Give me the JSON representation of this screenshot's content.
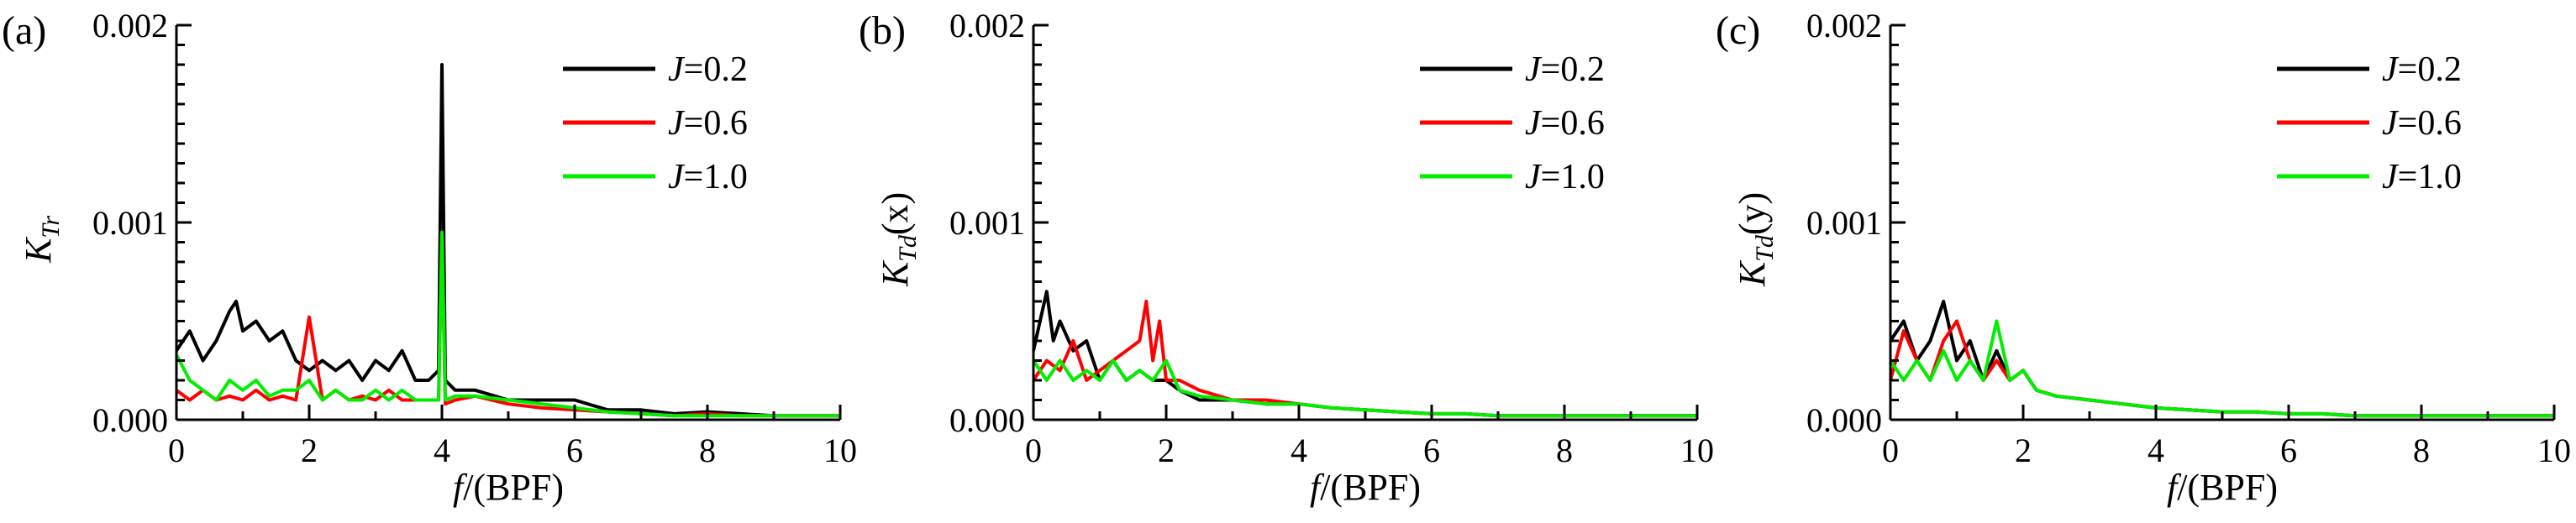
{
  "chart_data": [
    {
      "type": "line",
      "panel_label": "(a)",
      "ylabel": {
        "main": "K",
        "sub": "Tr",
        "suffix": ""
      },
      "xlabel": {
        "italic": "f",
        "rest": "/(BPF)"
      },
      "xlim": [
        0,
        10
      ],
      "ylim": [
        0,
        0.002
      ],
      "xticks": [
        "0",
        "2",
        "4",
        "6",
        "8",
        "10"
      ],
      "yticks": [
        "0.000",
        "0.001",
        "0.002"
      ],
      "legend_position": "top-right",
      "series": [
        {
          "name": "J=0.2",
          "prefix": "J",
          "value_text": "=0.2",
          "color": "#000000",
          "x": [
            0,
            0.2,
            0.4,
            0.6,
            0.8,
            0.9,
            1.0,
            1.2,
            1.4,
            1.6,
            1.8,
            2.0,
            2.2,
            2.4,
            2.6,
            2.8,
            3.0,
            3.2,
            3.4,
            3.6,
            3.8,
            3.95,
            4.0,
            4.05,
            4.2,
            4.5,
            5.0,
            5.5,
            6.0,
            6.5,
            7.0,
            7.5,
            8.0,
            8.5,
            9.0,
            9.5,
            10.0
          ],
          "y": [
            0.00035,
            0.00045,
            0.0003,
            0.0004,
            0.00055,
            0.0006,
            0.00045,
            0.0005,
            0.0004,
            0.00045,
            0.0003,
            0.00025,
            0.0003,
            0.00025,
            0.0003,
            0.0002,
            0.0003,
            0.00025,
            0.00035,
            0.0002,
            0.0002,
            0.00025,
            0.0018,
            0.0002,
            0.00015,
            0.00015,
            0.0001,
            0.0001,
            0.0001,
            5e-05,
            5e-05,
            3e-05,
            4e-05,
            3e-05,
            2e-05,
            2e-05,
            2e-05
          ]
        },
        {
          "name": "J=0.6",
          "prefix": "J",
          "value_text": "=0.6",
          "color": "#ff0000",
          "x": [
            0,
            0.2,
            0.4,
            0.6,
            0.8,
            1.0,
            1.2,
            1.4,
            1.6,
            1.8,
            2.0,
            2.2,
            2.4,
            2.6,
            2.8,
            3.0,
            3.2,
            3.4,
            3.6,
            3.8,
            3.95,
            4.0,
            4.05,
            4.2,
            4.5,
            5.0,
            5.5,
            6.0,
            6.5,
            7.0,
            7.5,
            8.0,
            8.5,
            9.0,
            9.5,
            10.0
          ],
          "y": [
            0.00015,
            0.0001,
            0.00015,
            0.0001,
            0.00012,
            0.0001,
            0.00015,
            0.0001,
            0.00012,
            0.0001,
            0.00052,
            0.0001,
            0.00015,
            0.0001,
            0.00012,
            0.0001,
            0.00015,
            0.0001,
            0.0001,
            0.0001,
            0.0001,
            0.00095,
            8e-05,
            0.0001,
            0.00012,
            8e-05,
            6e-05,
            5e-05,
            4e-05,
            3e-05,
            2e-05,
            3e-05,
            2e-05,
            2e-05,
            2e-05,
            2e-05
          ]
        },
        {
          "name": "J=1.0",
          "prefix": "J",
          "value_text": "=1.0",
          "color": "#00ee00",
          "x": [
            0,
            0.2,
            0.4,
            0.6,
            0.8,
            1.0,
            1.2,
            1.4,
            1.6,
            1.8,
            2.0,
            2.2,
            2.4,
            2.6,
            2.8,
            3.0,
            3.2,
            3.4,
            3.6,
            3.8,
            3.95,
            4.0,
            4.05,
            4.2,
            4.5,
            5.0,
            5.5,
            6.0,
            6.5,
            7.0,
            7.5,
            8.0,
            8.5,
            9.0,
            9.5,
            10.0
          ],
          "y": [
            0.00033,
            0.0002,
            0.00015,
            0.0001,
            0.0002,
            0.00015,
            0.0002,
            0.00012,
            0.00015,
            0.00015,
            0.0002,
            0.0001,
            0.00015,
            0.0001,
            0.0001,
            0.00015,
            0.0001,
            0.00015,
            0.0001,
            0.0001,
            0.0001,
            0.00095,
            0.0001,
            0.00012,
            0.00012,
            0.0001,
            8e-05,
            6e-05,
            4e-05,
            3e-05,
            2e-05,
            2e-05,
            2e-05,
            2e-05,
            2e-05,
            2e-05
          ]
        }
      ]
    },
    {
      "type": "line",
      "panel_label": "(b)",
      "ylabel": {
        "main": "K",
        "sub": "Td",
        "suffix": "(x)"
      },
      "xlabel": {
        "italic": "f",
        "rest": "/(BPF)"
      },
      "xlim": [
        0,
        10
      ],
      "ylim": [
        0,
        0.002
      ],
      "xticks": [
        "0",
        "2",
        "4",
        "6",
        "8",
        "10"
      ],
      "yticks": [
        "0.000",
        "0.001",
        "0.002"
      ],
      "legend_position": "top-right",
      "series": [
        {
          "name": "J=0.2",
          "prefix": "J",
          "value_text": "=0.2",
          "color": "#000000",
          "x": [
            0,
            0.1,
            0.2,
            0.3,
            0.4,
            0.6,
            0.8,
            1.0,
            1.2,
            1.4,
            1.6,
            1.8,
            2.0,
            2.2,
            2.5,
            3.0,
            3.5,
            4.0,
            4.5,
            5.0,
            5.5,
            6.0,
            6.5,
            7.0,
            7.5,
            8.0,
            8.5,
            9.0,
            9.5,
            10.0
          ],
          "y": [
            0.00035,
            0.0005,
            0.00065,
            0.0004,
            0.0005,
            0.00035,
            0.0004,
            0.0002,
            0.0003,
            0.0002,
            0.00025,
            0.0002,
            0.0002,
            0.00015,
            0.0001,
            0.0001,
            8e-05,
            8e-05,
            6e-05,
            5e-05,
            4e-05,
            3e-05,
            3e-05,
            2e-05,
            2e-05,
            2e-05,
            2e-05,
            2e-05,
            2e-05,
            2e-05
          ]
        },
        {
          "name": "J=0.6",
          "prefix": "J",
          "value_text": "=0.6",
          "color": "#ff0000",
          "x": [
            0,
            0.2,
            0.4,
            0.6,
            0.8,
            1.0,
            1.2,
            1.4,
            1.6,
            1.7,
            1.8,
            1.9,
            2.0,
            2.2,
            2.5,
            3.0,
            3.5,
            4.0,
            4.5,
            5.0,
            5.5,
            6.0,
            6.5,
            7.0,
            7.5,
            8.0,
            8.5,
            9.0,
            9.5,
            10.0
          ],
          "y": [
            0.0002,
            0.0003,
            0.00025,
            0.0004,
            0.0002,
            0.00025,
            0.0003,
            0.00035,
            0.0004,
            0.0006,
            0.0003,
            0.0005,
            0.0002,
            0.0002,
            0.00015,
            0.0001,
            0.0001,
            8e-05,
            6e-05,
            5e-05,
            4e-05,
            3e-05,
            3e-05,
            2e-05,
            2e-05,
            2e-05,
            2e-05,
            2e-05,
            2e-05,
            2e-05
          ]
        },
        {
          "name": "J=1.0",
          "prefix": "J",
          "value_text": "=1.0",
          "color": "#00ee00",
          "x": [
            0,
            0.2,
            0.4,
            0.6,
            0.8,
            1.0,
            1.2,
            1.4,
            1.6,
            1.8,
            2.0,
            2.2,
            2.5,
            3.0,
            3.5,
            4.0,
            4.5,
            5.0,
            5.5,
            6.0,
            6.5,
            7.0,
            7.5,
            8.0,
            8.5,
            9.0,
            9.5,
            10.0
          ],
          "y": [
            0.0003,
            0.0002,
            0.0003,
            0.0002,
            0.00025,
            0.0002,
            0.0003,
            0.0002,
            0.00025,
            0.0002,
            0.0003,
            0.00015,
            0.00012,
            0.0001,
            8e-05,
            8e-05,
            6e-05,
            5e-05,
            4e-05,
            3e-05,
            3e-05,
            2e-05,
            2e-05,
            2e-05,
            2e-05,
            2e-05,
            2e-05,
            2e-05
          ]
        }
      ]
    },
    {
      "type": "line",
      "panel_label": "(c)",
      "ylabel": {
        "main": "K",
        "sub": "Td",
        "suffix": "(y)"
      },
      "xlabel": {
        "italic": "f",
        "rest": "/(BPF)"
      },
      "xlim": [
        0,
        10
      ],
      "ylim": [
        0,
        0.002
      ],
      "xticks": [
        "0",
        "2",
        "4",
        "6",
        "8",
        "10"
      ],
      "yticks": [
        "0.000",
        "0.001",
        "0.002"
      ],
      "legend_position": "top-right",
      "series": [
        {
          "name": "J=0.2",
          "prefix": "J",
          "value_text": "=0.2",
          "color": "#000000",
          "x": [
            0,
            0.2,
            0.4,
            0.6,
            0.8,
            1.0,
            1.2,
            1.4,
            1.6,
            1.8,
            2.0,
            2.2,
            2.5,
            3.0,
            3.5,
            4.0,
            4.5,
            5.0,
            5.5,
            6.0,
            6.5,
            7.0,
            7.5,
            8.0,
            8.5,
            9.0,
            9.5,
            10.0
          ],
          "y": [
            0.0004,
            0.0005,
            0.0003,
            0.0004,
            0.0006,
            0.0003,
            0.0004,
            0.0002,
            0.00035,
            0.0002,
            0.00025,
            0.00015,
            0.00012,
            0.0001,
            8e-05,
            6e-05,
            5e-05,
            4e-05,
            4e-05,
            3e-05,
            3e-05,
            2e-05,
            2e-05,
            2e-05,
            2e-05,
            2e-05,
            2e-05,
            2e-05
          ]
        },
        {
          "name": "J=0.6",
          "prefix": "J",
          "value_text": "=0.6",
          "color": "#ff0000",
          "x": [
            0,
            0.2,
            0.4,
            0.6,
            0.8,
            1.0,
            1.2,
            1.4,
            1.6,
            1.8,
            2.0,
            2.2,
            2.5,
            3.0,
            3.5,
            4.0,
            4.5,
            5.0,
            5.5,
            6.0,
            6.5,
            7.0,
            7.5,
            8.0,
            8.5,
            9.0,
            9.5,
            10.0
          ],
          "y": [
            0.0002,
            0.00045,
            0.0003,
            0.0002,
            0.0004,
            0.0005,
            0.0003,
            0.0002,
            0.0003,
            0.0002,
            0.00025,
            0.00015,
            0.00012,
            0.0001,
            8e-05,
            6e-05,
            5e-05,
            4e-05,
            4e-05,
            3e-05,
            3e-05,
            2e-05,
            2e-05,
            2e-05,
            2e-05,
            2e-05,
            2e-05,
            2e-05
          ]
        },
        {
          "name": "J=1.0",
          "prefix": "J",
          "value_text": "=1.0",
          "color": "#00ee00",
          "x": [
            0,
            0.2,
            0.4,
            0.6,
            0.8,
            1.0,
            1.2,
            1.4,
            1.6,
            1.8,
            2.0,
            2.2,
            2.5,
            3.0,
            3.5,
            4.0,
            4.5,
            5.0,
            5.5,
            6.0,
            6.5,
            7.0,
            7.5,
            8.0,
            8.5,
            9.0,
            9.5,
            10.0
          ],
          "y": [
            0.0003,
            0.0002,
            0.0003,
            0.0002,
            0.00035,
            0.0002,
            0.0003,
            0.0002,
            0.0005,
            0.0002,
            0.00025,
            0.00015,
            0.00012,
            0.0001,
            8e-05,
            6e-05,
            5e-05,
            4e-05,
            4e-05,
            3e-05,
            3e-05,
            2e-05,
            2e-05,
            2e-05,
            2e-05,
            2e-05,
            2e-05,
            2e-05
          ]
        }
      ]
    }
  ]
}
